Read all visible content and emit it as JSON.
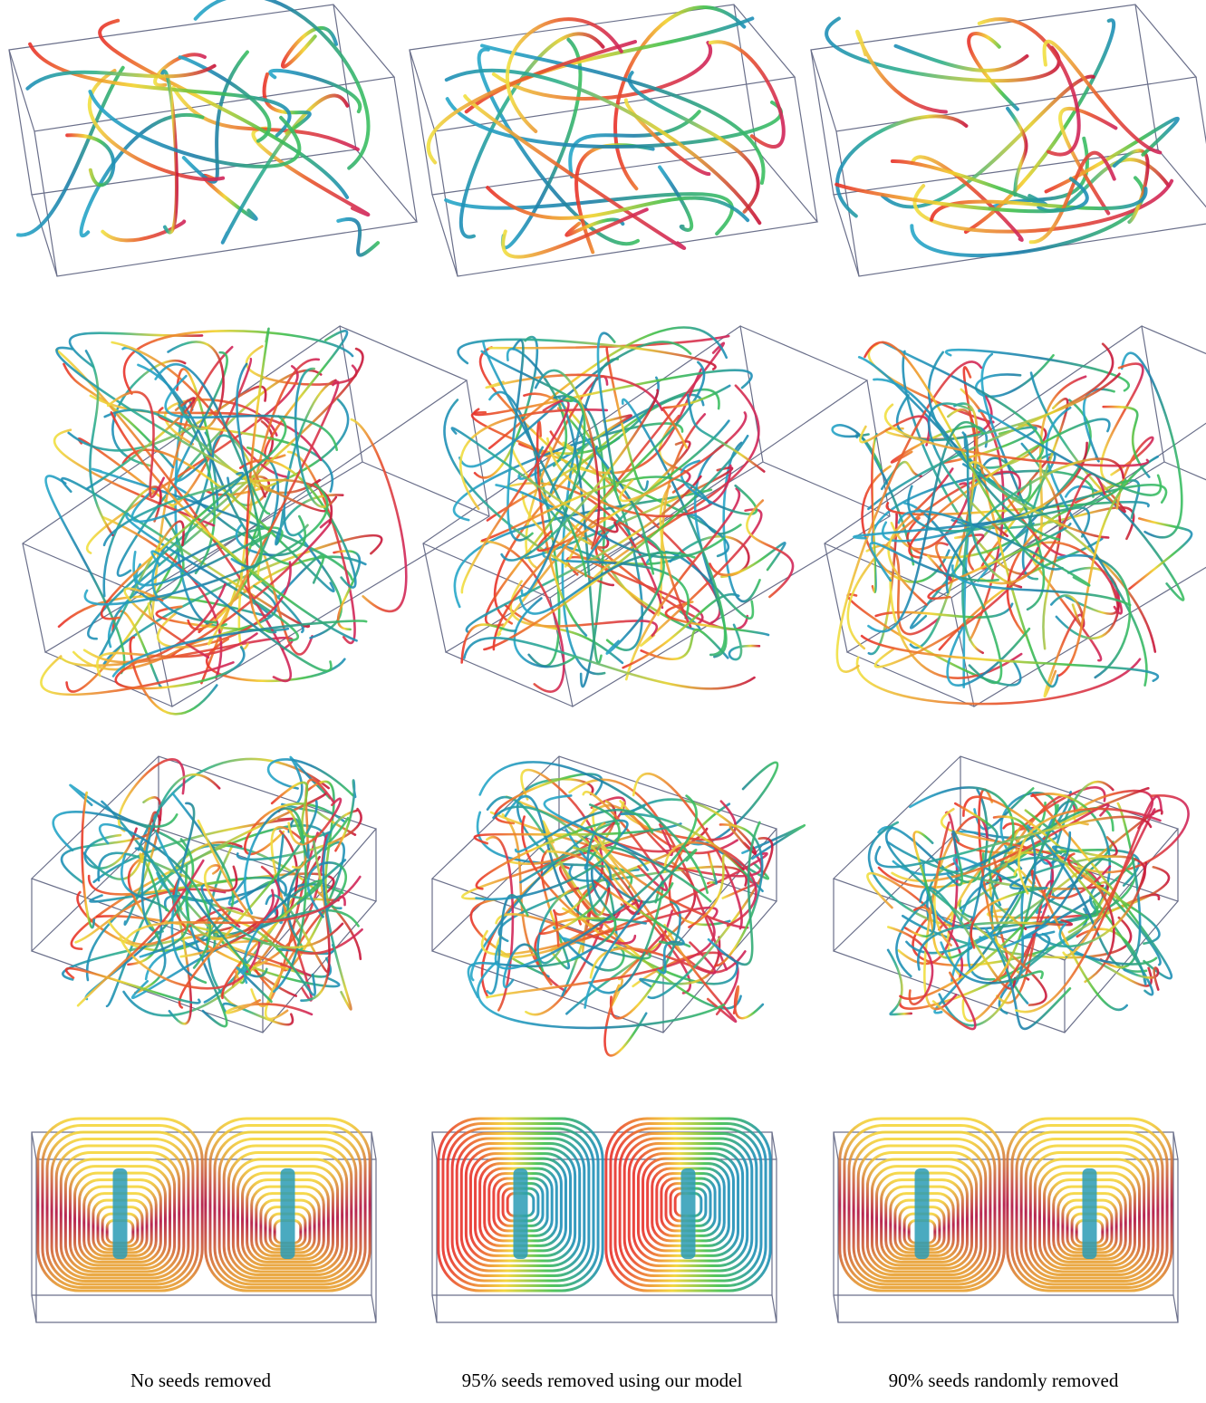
{
  "figure": {
    "captions": [
      "No seeds removed",
      "95% seeds removed using our model",
      "90% seeds randomly removed"
    ]
  }
}
